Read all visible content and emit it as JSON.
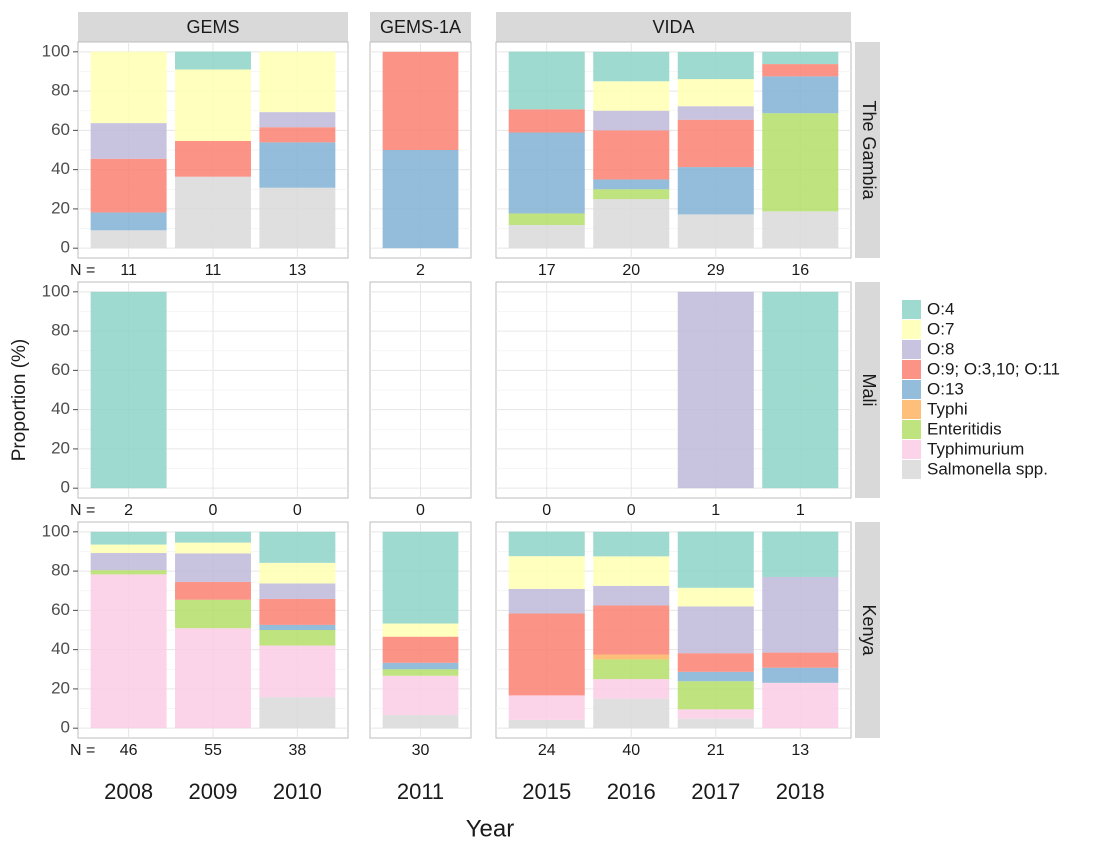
{
  "chart_data": {
    "type": "bar",
    "stacked": true,
    "x_label": "Year",
    "y_label": "Proportion (%)",
    "n_label": "N =",
    "ylim": [
      0,
      100
    ],
    "yticks": [
      0,
      20,
      40,
      60,
      80,
      100
    ],
    "grid": true,
    "facets": [
      {
        "name": "GEMS",
        "categories": [
          "2008",
          "2009",
          "2010"
        ]
      },
      {
        "name": "GEMS-1A",
        "categories": [
          "2011"
        ]
      },
      {
        "name": "VIDA",
        "categories": [
          "2015",
          "2016",
          "2017",
          "2018"
        ]
      }
    ],
    "series": [
      {
        "name": "O:4",
        "color": "#8dd3c7"
      },
      {
        "name": "O:7",
        "color": "#ffffb3"
      },
      {
        "name": "O:8",
        "color": "#bebada"
      },
      {
        "name": "O:9; O:3,10; O:11",
        "color": "#fb8072"
      },
      {
        "name": "O:13",
        "color": "#80b1d3"
      },
      {
        "name": "Typhi",
        "color": "#fdb462"
      },
      {
        "name": "Enteritidis",
        "color": "#b3de69"
      },
      {
        "name": "Typhimurium",
        "color": "#fccde5"
      },
      {
        "name": "Salmonella spp.",
        "color": "#d9d9d9"
      }
    ],
    "rows": [
      {
        "name": "The Gambia",
        "n": [
          11,
          11,
          13,
          2,
          17,
          20,
          29,
          16
        ],
        "values": [
          [
            0,
            9.1,
            0,
            0,
            29.4,
            15,
            13.8,
            6.25
          ],
          [
            36.4,
            36.4,
            30.8,
            0,
            0,
            15,
            13.8,
            0
          ],
          [
            18.2,
            0,
            7.7,
            0,
            0,
            10,
            6.9,
            0
          ],
          [
            27.3,
            18.2,
            7.7,
            50,
            11.8,
            25,
            24.1,
            6.25
          ],
          [
            9.1,
            0,
            23.1,
            50,
            41.2,
            5,
            24.1,
            18.75
          ],
          [
            0,
            0,
            0,
            0,
            0,
            0,
            0,
            0
          ],
          [
            0,
            0,
            0,
            0,
            5.9,
            5,
            0,
            50
          ],
          [
            0,
            0,
            0,
            0,
            0,
            0,
            0,
            0
          ],
          [
            9.1,
            36.4,
            30.8,
            0,
            11.8,
            25,
            17.2,
            18.75
          ]
        ]
      },
      {
        "name": "Mali",
        "n": [
          2,
          0,
          0,
          0,
          0,
          0,
          1,
          1
        ],
        "values": [
          [
            100,
            0,
            0,
            0,
            0,
            0,
            0,
            100
          ],
          [
            0,
            0,
            0,
            0,
            0,
            0,
            0,
            0
          ],
          [
            0,
            0,
            0,
            0,
            0,
            0,
            100,
            0
          ],
          [
            0,
            0,
            0,
            0,
            0,
            0,
            0,
            0
          ],
          [
            0,
            0,
            0,
            0,
            0,
            0,
            0,
            0
          ],
          [
            0,
            0,
            0,
            0,
            0,
            0,
            0,
            0
          ],
          [
            0,
            0,
            0,
            0,
            0,
            0,
            0,
            0
          ],
          [
            0,
            0,
            0,
            0,
            0,
            0,
            0,
            0
          ],
          [
            0,
            0,
            0,
            0,
            0,
            0,
            0,
            0
          ]
        ]
      },
      {
        "name": "Kenya",
        "n": [
          46,
          55,
          38,
          30,
          24,
          40,
          21,
          13
        ],
        "values": [
          [
            6.5,
            5.5,
            15.8,
            46.7,
            12.5,
            12.5,
            28.6,
            23.1
          ],
          [
            4.3,
            5.5,
            10.5,
            6.7,
            16.7,
            15,
            9.5,
            0
          ],
          [
            8.7,
            14.5,
            7.9,
            0,
            12.5,
            10,
            23.8,
            38.5
          ],
          [
            0,
            9.1,
            13.2,
            13.3,
            41.7,
            25,
            9.5,
            7.7
          ],
          [
            0,
            0,
            2.6,
            3.3,
            0,
            0,
            4.8,
            7.7
          ],
          [
            0,
            0,
            0,
            0,
            0,
            2.5,
            0,
            0
          ],
          [
            2.2,
            14.5,
            7.9,
            3.3,
            0,
            10,
            14.3,
            0
          ],
          [
            78.3,
            50.9,
            26.3,
            20,
            12.5,
            10,
            4.8,
            23.1
          ],
          [
            0,
            0,
            15.8,
            6.7,
            4.2,
            15,
            4.8,
            0
          ]
        ]
      }
    ]
  }
}
